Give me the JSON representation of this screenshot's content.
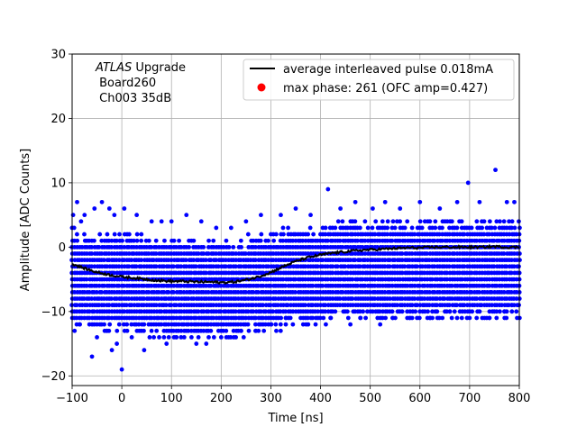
{
  "chart_data": {
    "type": "scatter",
    "title": "",
    "xlabel": "Time [ns]",
    "ylabel": "Amplitude [ADC Counts]",
    "xlim": [
      -100,
      800
    ],
    "ylim": [
      -21.5,
      30
    ],
    "xticks": [
      -100,
      0,
      100,
      200,
      300,
      400,
      500,
      600,
      700,
      800
    ],
    "yticks": [
      -20,
      -10,
      0,
      10,
      20,
      30
    ],
    "grid": true,
    "annotation": {
      "experiment": "ATLAS",
      "line1_suffix": " Upgrade",
      "line2": " Board260",
      "line3": " Ch003 35dB"
    },
    "legend": {
      "placement": "top-right",
      "entries": [
        {
          "label": "average interleaved pulse 0.018mA",
          "marker": "line",
          "color": "#000000"
        },
        {
          "label": "max phase: 261 (OFC amp=0.427)",
          "marker": "dot",
          "color": "#ff0000"
        }
      ]
    },
    "series": [
      {
        "name": "samples",
        "kind": "scatter-band",
        "color": "#0000ff",
        "sample_step_ns": 5,
        "band_levels": [
          -11,
          -10,
          -9,
          -8,
          -7,
          -6,
          -5,
          -4,
          -3,
          -2,
          -1,
          0,
          1,
          2,
          3,
          4
        ],
        "outliers_x": [
          -98,
          -90,
          -82,
          -75,
          -55,
          -40,
          -25,
          -15,
          5,
          30,
          60,
          80,
          100,
          130,
          160,
          190,
          220,
          250,
          280,
          320,
          350,
          380,
          415,
          440,
          470,
          505,
          530,
          560,
          600,
          640,
          675,
          697,
          720,
          752,
          775,
          790,
          -95,
          -85,
          -60,
          -50,
          -30,
          -20,
          -10,
          0,
          20,
          45,
          70,
          90,
          110,
          150,
          170,
          200,
          240,
          270,
          300,
          330,
          360,
          390,
          420,
          460,
          480,
          520,
          545,
          580,
          620,
          660,
          700,
          740,
          770,
          785
        ],
        "outliers_y": [
          5,
          7,
          4,
          5,
          6,
          7,
          6,
          5,
          6,
          5,
          4,
          4,
          4,
          5,
          4,
          3,
          3,
          4,
          5,
          5,
          6,
          5,
          9,
          6,
          7,
          6,
          7,
          6,
          7,
          6,
          7,
          10,
          7,
          12,
          7,
          7,
          -13,
          -12,
          -17,
          -14,
          -13,
          -16,
          -15,
          -19,
          -14,
          -16,
          -13,
          -15,
          -14,
          -15,
          -15,
          -14,
          -13,
          -13,
          -12,
          -11,
          -11,
          -12,
          -11,
          -12,
          -11,
          -12,
          -11,
          -11,
          -11,
          -10,
          -11,
          -11,
          -10,
          -9
        ]
      },
      {
        "name": "average interleaved pulse 0.018mA",
        "kind": "line",
        "color": "#000000",
        "x": [
          -100,
          -75,
          -50,
          -25,
          0,
          25,
          50,
          75,
          100,
          125,
          150,
          175,
          200,
          225,
          250,
          275,
          300,
          325,
          350,
          375,
          400,
          425,
          450,
          475,
          500,
          525,
          550,
          575,
          600,
          625,
          650,
          675,
          700,
          725,
          750,
          775,
          800
        ],
        "y": [
          -2.6,
          -3.3,
          -3.9,
          -4.3,
          -4.6,
          -4.8,
          -5.0,
          -5.2,
          -5.3,
          -5.3,
          -5.4,
          -5.4,
          -5.5,
          -5.4,
          -5.1,
          -4.6,
          -3.9,
          -3.0,
          -2.2,
          -1.6,
          -1.2,
          -0.9,
          -0.7,
          -0.5,
          -0.4,
          -0.3,
          -0.2,
          -0.1,
          -0.1,
          0.0,
          0.0,
          0.0,
          0.0,
          0.0,
          0.1,
          0.0,
          0.0
        ]
      }
    ]
  }
}
